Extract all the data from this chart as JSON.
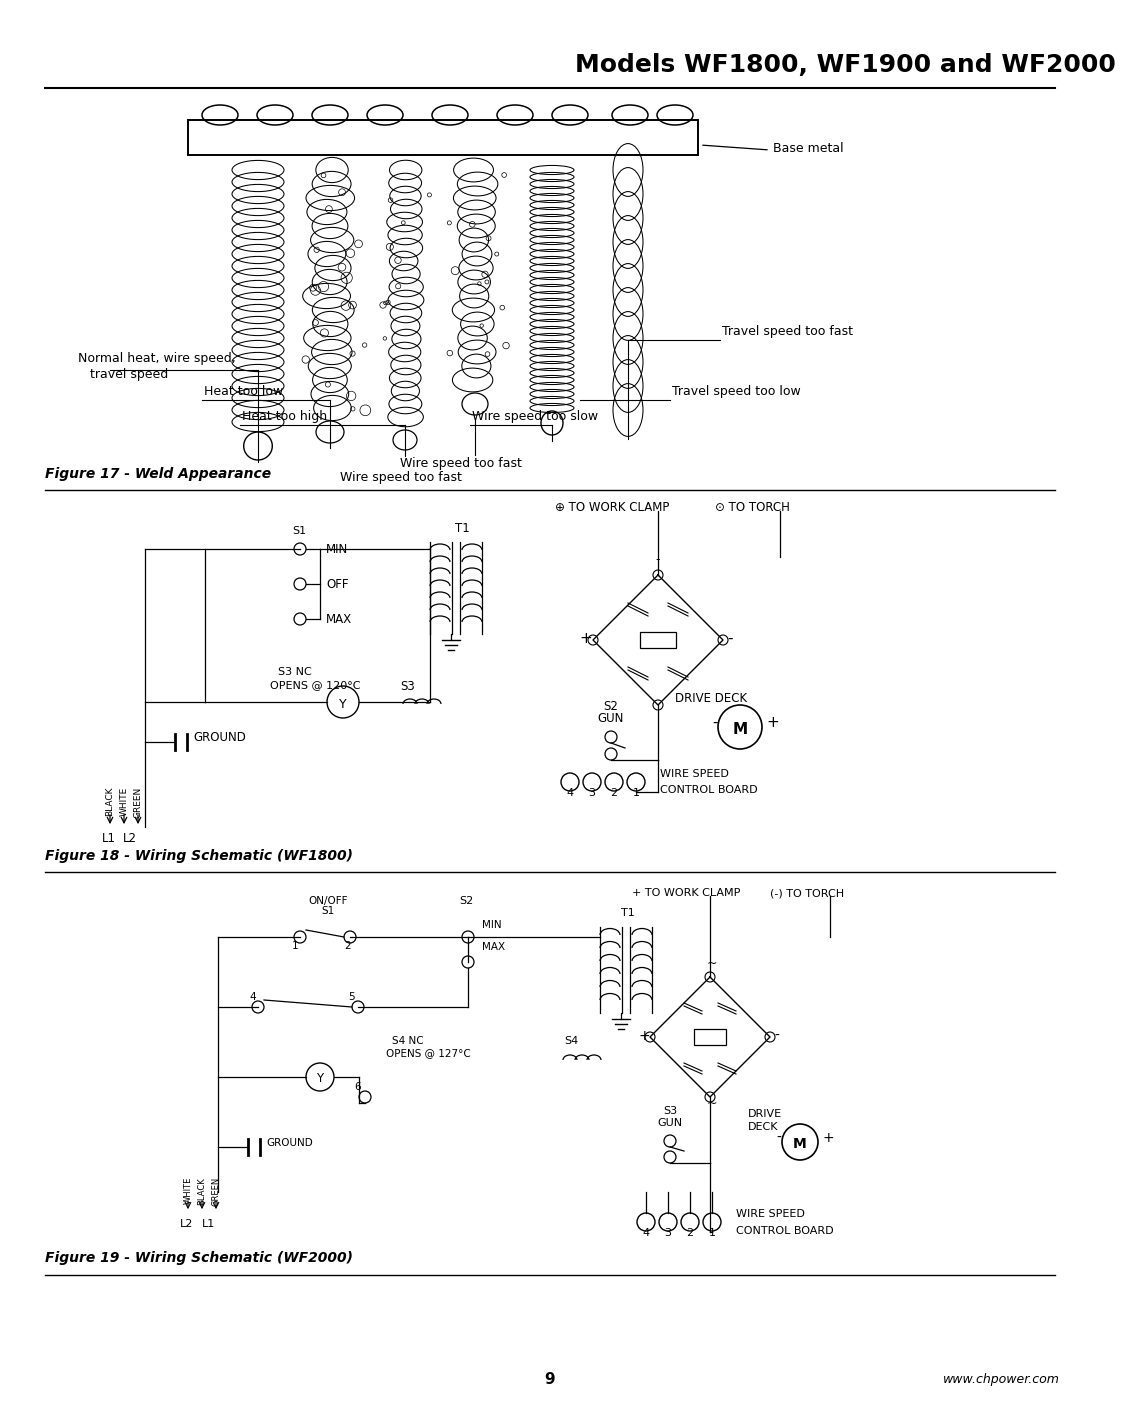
{
  "title": "Models WF1800, WF1900 and WF2000",
  "page_number": "9",
  "website": "www.chpower.com",
  "bg_color": "#ffffff",
  "fig17_label": "Figure 17 - Weld Appearance",
  "fig18_label": "Figure 18 - Wiring Schematic (WF1800)",
  "fig19_label": "Figure 19 - Wiring Schematic (WF2000)",
  "weld_labels": {
    "base_metal": "Base metal",
    "normal": "Normal heat, wire speed,",
    "normal2": "   travel speed",
    "heat_low": "Heat too low",
    "heat_high": "Heat too high",
    "wire_fast": "Wire speed too fast",
    "wire_slow": "Wire speed too slow",
    "travel_fast": "Travel speed too fast",
    "travel_slow": "Travel speed too low"
  }
}
